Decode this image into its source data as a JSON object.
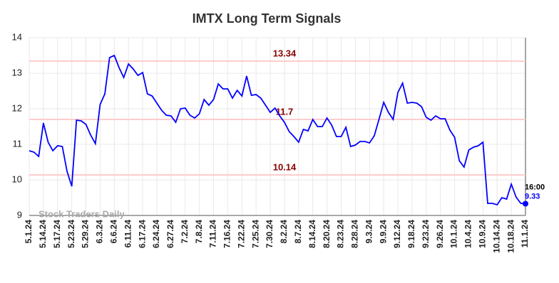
{
  "chart_data": {
    "type": "line",
    "title": "IMTX Long Term Signals",
    "categories": [
      "5.1.24",
      null,
      null,
      "5.14.24",
      null,
      null,
      "5.17.24",
      null,
      null,
      "5.23.24",
      null,
      null,
      "5.29.24",
      null,
      null,
      "6.3.24",
      null,
      null,
      "6.6.24",
      null,
      null,
      "6.11.24",
      null,
      null,
      "6.17.24",
      null,
      null,
      "6.24.24",
      null,
      null,
      "6.27.24",
      null,
      null,
      "7.2.24",
      null,
      null,
      "7.8.24",
      null,
      null,
      "7.11.24",
      null,
      null,
      "7.16.24",
      null,
      null,
      "7.22.24",
      null,
      null,
      "7.25.24",
      null,
      null,
      "7.30.24",
      null,
      null,
      "8.2.24",
      null,
      null,
      "8.7.24",
      null,
      null,
      "8.14.24",
      null,
      null,
      "8.20.24",
      null,
      null,
      "8.23.24",
      null,
      null,
      "8.28.24",
      null,
      null,
      "9.3.24",
      null,
      null,
      "9.9.24",
      null,
      null,
      "9.12.24",
      null,
      null,
      "9.18.24",
      null,
      null,
      "9.23.24",
      null,
      null,
      "9.26.24",
      null,
      null,
      "10.1.24",
      null,
      null,
      "10.4.24",
      null,
      null,
      "10.9.24",
      null,
      null,
      "10.14.24",
      null,
      null,
      "10.18.24",
      null,
      null,
      "11.1.24"
    ],
    "values": [
      10.82,
      10.78,
      10.66,
      11.6,
      11.06,
      10.82,
      10.96,
      10.94,
      10.24,
      9.82,
      11.68,
      11.66,
      11.56,
      11.26,
      11.02,
      12.12,
      12.42,
      13.44,
      13.5,
      13.16,
      12.88,
      13.26,
      13.12,
      12.94,
      13.02,
      12.42,
      12.36,
      12.16,
      11.96,
      11.82,
      11.8,
      11.62,
      12.0,
      12.02,
      11.82,
      11.74,
      11.86,
      12.26,
      12.1,
      12.26,
      12.7,
      12.56,
      12.56,
      12.3,
      12.52,
      12.36,
      12.92,
      12.38,
      12.4,
      12.3,
      12.1,
      11.9,
      12.02,
      11.8,
      11.62,
      11.36,
      11.22,
      11.06,
      11.42,
      11.38,
      11.7,
      11.5,
      11.5,
      11.74,
      11.54,
      11.22,
      11.22,
      11.48,
      10.94,
      10.98,
      11.08,
      11.08,
      11.04,
      11.24,
      11.7,
      12.18,
      11.9,
      11.7,
      12.46,
      12.72,
      12.16,
      12.18,
      12.16,
      12.06,
      11.76,
      11.68,
      11.8,
      11.72,
      11.72,
      11.4,
      11.2,
      10.54,
      10.36,
      10.84,
      10.92,
      10.96,
      11.06,
      9.34,
      9.34,
      9.3,
      9.5,
      9.46,
      9.88,
      9.52,
      9.34,
      9.33
    ],
    "color": "#0000ff",
    "ylim": [
      9,
      14
    ],
    "yticks": [
      9,
      10,
      11,
      12,
      13,
      14
    ],
    "grid": true,
    "hlines": [
      13.34,
      11.7,
      10.14
    ],
    "hline_color": "#ffcccc",
    "hline_label_color": "#8b0000",
    "last_time": "16:00",
    "watermark": "Stock Traders Daily"
  }
}
